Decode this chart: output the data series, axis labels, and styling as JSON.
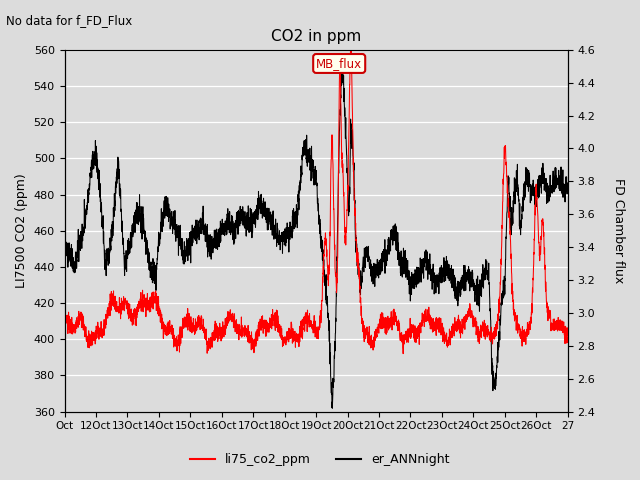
{
  "title": "CO2 in ppm",
  "top_left_text": "No data for f_FD_Flux",
  "ylabel_left": "LI7500 CO2 (ppm)",
  "ylabel_right": "FD Chamber flux",
  "ylim_left": [
    360,
    560
  ],
  "ylim_right": [
    2.4,
    4.6
  ],
  "yticks_left": [
    360,
    380,
    400,
    420,
    440,
    460,
    480,
    500,
    520,
    540,
    560
  ],
  "yticks_right": [
    2.4,
    2.6,
    2.8,
    3.0,
    3.2,
    3.4,
    3.6,
    3.8,
    4.0,
    4.2,
    4.4,
    4.6
  ],
  "xtick_labels": [
    "Oct",
    "12Oct",
    "13Oct",
    "14Oct",
    "15Oct",
    "16Oct",
    "17Oct",
    "18Oct",
    "19Oct",
    "20Oct",
    "21Oct",
    "22Oct",
    "23Oct",
    "24Oct",
    "25Oct",
    "26Oct",
    "27"
  ],
  "legend_entries": [
    "li75_co2_ppm",
    "er_ANNnight"
  ],
  "legend_colors": [
    "#ff0000",
    "#000000"
  ],
  "annotation_text": "MB_flux",
  "annotation_color": "#cc0000",
  "annotation_bg": "#ffffee",
  "plot_bg_color": "#dcdcdc",
  "fig_bg_color": "#dcdcdc",
  "grid_color": "#ffffff",
  "li75_color": "#ff0000",
  "er_color": "#000000",
  "figsize": [
    6.4,
    4.8
  ],
  "dpi": 100
}
